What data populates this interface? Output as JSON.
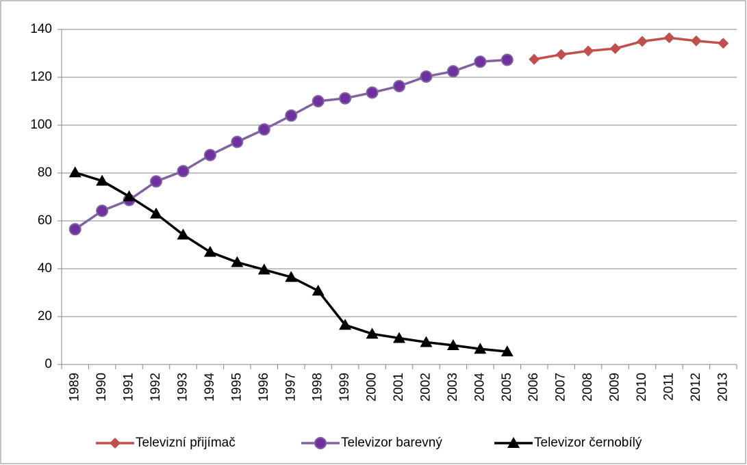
{
  "chart_data": {
    "type": "line",
    "categories": [
      "1989",
      "1990",
      "1991",
      "1992",
      "1993",
      "1994",
      "1995",
      "1996",
      "1997",
      "1998",
      "1999",
      "2000",
      "2001",
      "2002",
      "2003",
      "2004",
      "2005",
      "2006",
      "2007",
      "2008",
      "2009",
      "2010",
      "2011",
      "2012",
      "2013"
    ],
    "series": [
      {
        "name": "Televizní přijímač",
        "color": "#c0504d",
        "marker": "diamond",
        "values": [
          null,
          null,
          null,
          null,
          null,
          null,
          null,
          null,
          null,
          null,
          null,
          null,
          null,
          null,
          null,
          null,
          null,
          127.5,
          129.5,
          131,
          132,
          135,
          136.5,
          135.2,
          134.2
        ]
      },
      {
        "name": "Televizor barevný",
        "color": "#8064a2",
        "marker": "circle",
        "values": [
          56.5,
          64.2,
          68.7,
          76.5,
          80.8,
          87.5,
          93,
          98.2,
          104,
          110,
          111.2,
          113.6,
          116.3,
          120.3,
          122.5,
          126.5,
          127.3,
          null,
          null,
          null,
          null,
          null,
          null,
          null,
          null
        ]
      },
      {
        "name": "Televizor černobílý",
        "color": "#000000",
        "marker": "triangle",
        "values": [
          80.2,
          76.7,
          70.2,
          63,
          54.2,
          47,
          42.7,
          39.6,
          36.5,
          30.8,
          16.5,
          12.8,
          11,
          9.3,
          8,
          6.5,
          5.4,
          null,
          null,
          null,
          null,
          null,
          null,
          null,
          null
        ]
      }
    ],
    "ylim": [
      0,
      140
    ],
    "yticks": [
      0,
      20,
      40,
      60,
      80,
      100,
      120,
      140
    ],
    "grid": true,
    "legend": "bottom"
  }
}
